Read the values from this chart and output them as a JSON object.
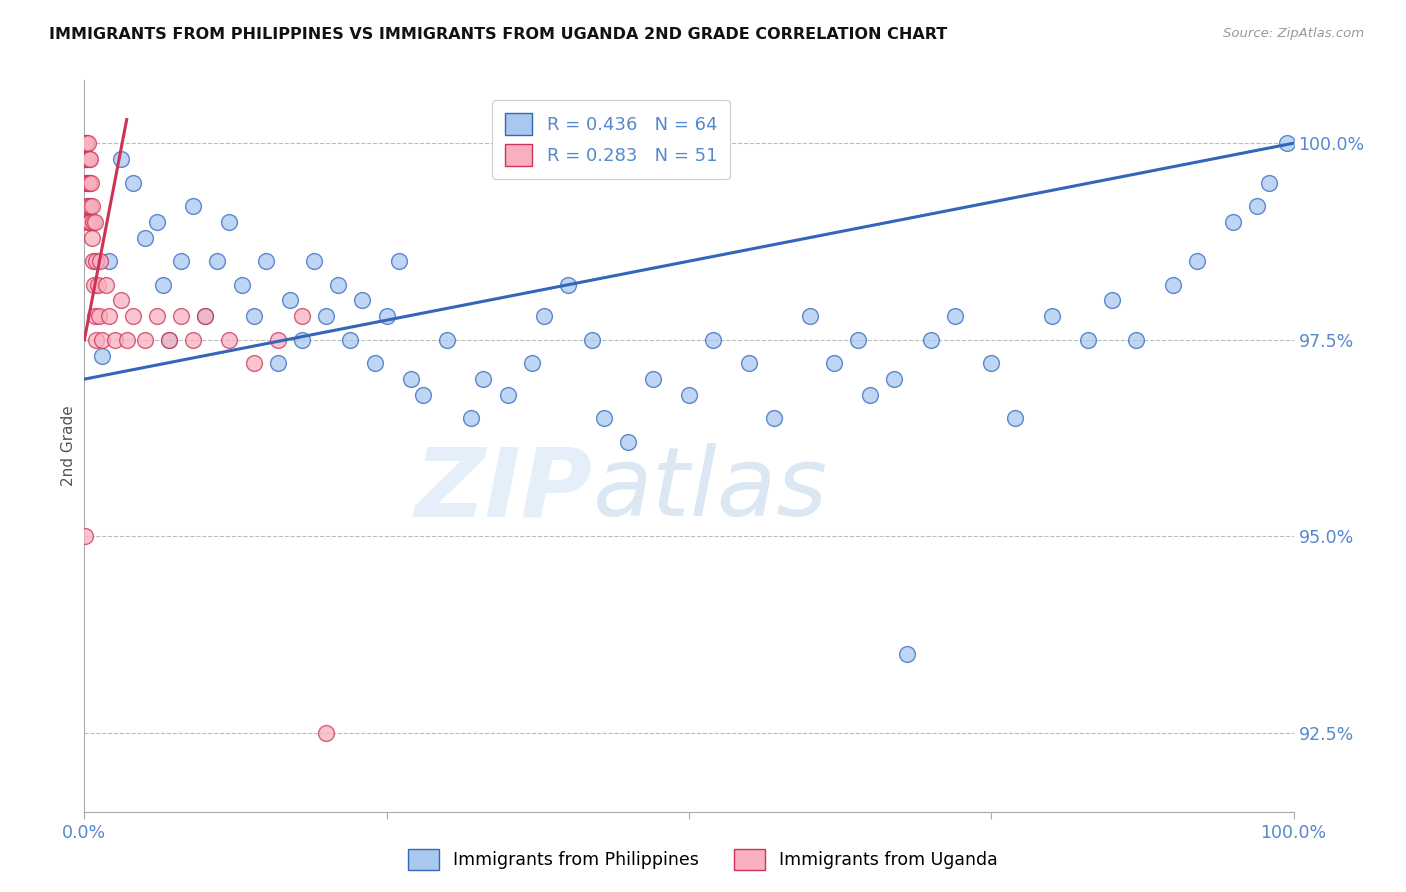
{
  "title": "IMMIGRANTS FROM PHILIPPINES VS IMMIGRANTS FROM UGANDA 2ND GRADE CORRELATION CHART",
  "source": "Source: ZipAtlas.com",
  "ylabel": "2nd Grade",
  "legend_labels": [
    "Immigrants from Philippines",
    "Immigrants from Uganda"
  ],
  "legend_R": [
    0.436,
    0.283
  ],
  "legend_N": [
    64,
    51
  ],
  "blue_color": "#A8C8F0",
  "pink_color": "#F8B0C0",
  "blue_line_color": "#3366BB",
  "pink_line_color": "#CC3355",
  "watermark_zip": "ZIP",
  "watermark_atlas": "atlas",
  "title_color": "#111111",
  "axis_label_color": "#555555",
  "tick_label_color": "#5588CC",
  "grid_color": "#BBBBBB",
  "y_min": 91.5,
  "y_max": 100.8,
  "x_min": 0.0,
  "x_max": 100.0,
  "y_ticks": [
    92.5,
    95.0,
    97.5,
    100.0
  ],
  "philippines_x": [
    1.5,
    2.0,
    3.0,
    4.0,
    5.0,
    6.0,
    6.5,
    7.0,
    8.0,
    9.0,
    10.0,
    11.0,
    12.0,
    13.0,
    14.0,
    15.0,
    16.0,
    17.0,
    18.0,
    19.0,
    20.0,
    21.0,
    22.0,
    23.0,
    24.0,
    25.0,
    26.0,
    27.0,
    28.0,
    30.0,
    32.0,
    33.0,
    35.0,
    37.0,
    38.0,
    40.0,
    42.0,
    43.0,
    45.0,
    47.0,
    50.0,
    52.0,
    55.0,
    57.0,
    60.0,
    62.0,
    64.0,
    65.0,
    67.0,
    68.0,
    70.0,
    72.0,
    75.0,
    77.0,
    80.0,
    83.0,
    85.0,
    87.0,
    90.0,
    92.0,
    95.0,
    97.0,
    98.0,
    99.5
  ],
  "philippines_y": [
    97.3,
    98.5,
    99.8,
    99.5,
    98.8,
    99.0,
    98.2,
    97.5,
    98.5,
    99.2,
    97.8,
    98.5,
    99.0,
    98.2,
    97.8,
    98.5,
    97.2,
    98.0,
    97.5,
    98.5,
    97.8,
    98.2,
    97.5,
    98.0,
    97.2,
    97.8,
    98.5,
    97.0,
    96.8,
    97.5,
    96.5,
    97.0,
    96.8,
    97.2,
    97.8,
    98.2,
    97.5,
    96.5,
    96.2,
    97.0,
    96.8,
    97.5,
    97.2,
    96.5,
    97.8,
    97.2,
    97.5,
    96.8,
    97.0,
    93.5,
    97.5,
    97.8,
    97.2,
    96.5,
    97.8,
    97.5,
    98.0,
    97.5,
    98.2,
    98.5,
    99.0,
    99.2,
    99.5,
    100.0
  ],
  "uganda_x": [
    0.05,
    0.08,
    0.1,
    0.12,
    0.15,
    0.18,
    0.2,
    0.22,
    0.25,
    0.28,
    0.3,
    0.32,
    0.35,
    0.38,
    0.4,
    0.42,
    0.45,
    0.48,
    0.5,
    0.55,
    0.6,
    0.65,
    0.7,
    0.75,
    0.8,
    0.85,
    0.9,
    0.95,
    1.0,
    1.1,
    1.2,
    1.3,
    1.5,
    1.8,
    2.0,
    2.5,
    3.0,
    3.5,
    4.0,
    5.0,
    6.0,
    7.0,
    8.0,
    9.0,
    10.0,
    12.0,
    14.0,
    16.0,
    18.0,
    0.05,
    20.0
  ],
  "uganda_y": [
    100.0,
    99.8,
    100.0,
    99.5,
    99.8,
    99.2,
    99.5,
    99.0,
    99.8,
    99.5,
    99.2,
    100.0,
    99.5,
    99.8,
    99.0,
    99.5,
    99.2,
    99.8,
    99.0,
    99.5,
    98.8,
    99.2,
    98.5,
    99.0,
    98.2,
    99.0,
    97.8,
    98.5,
    97.5,
    98.2,
    97.8,
    98.5,
    97.5,
    98.2,
    97.8,
    97.5,
    98.0,
    97.5,
    97.8,
    97.5,
    97.8,
    97.5,
    97.8,
    97.5,
    97.8,
    97.5,
    97.2,
    97.5,
    97.8,
    95.0,
    92.5
  ],
  "blue_trendline_x0": 0.0,
  "blue_trendline_y0": 97.0,
  "blue_trendline_x1": 100.0,
  "blue_trendline_y1": 100.0,
  "pink_trendline_x0": 0.0,
  "pink_trendline_y0": 97.5,
  "pink_trendline_x1": 3.5,
  "pink_trendline_y1": 100.3
}
